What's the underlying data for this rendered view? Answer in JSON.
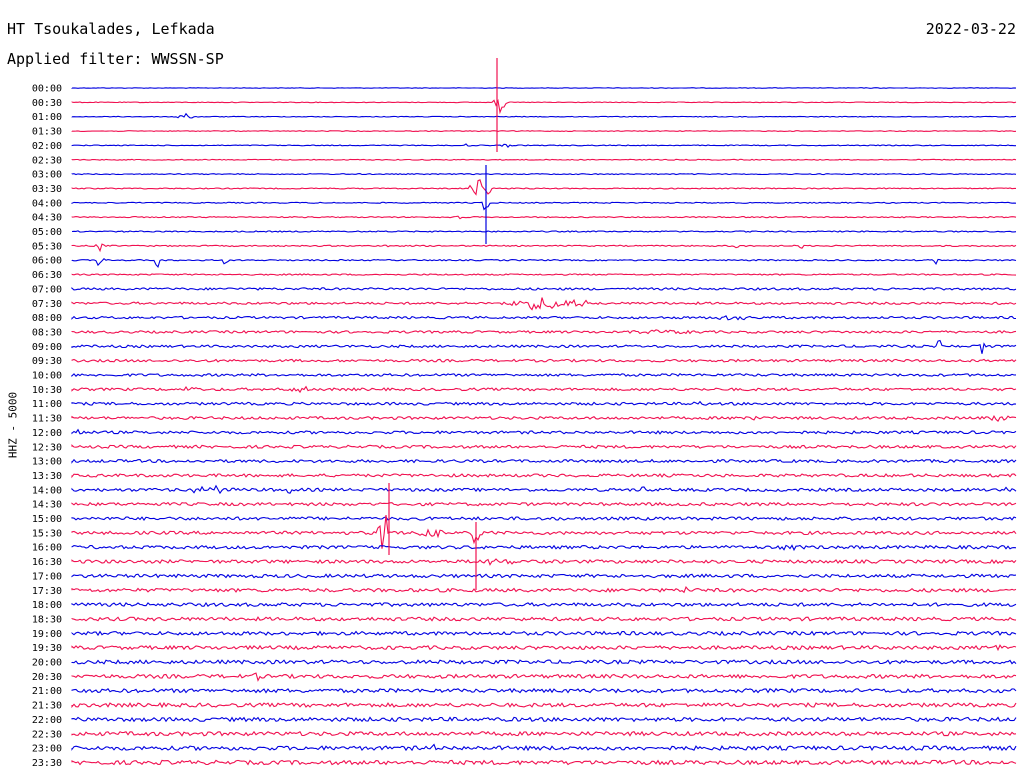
{
  "header": {
    "station": "HT Tsoukalades, Lefkada",
    "date": "2022-03-22",
    "filter": "Applied filter: WWSSN-SP",
    "channel_label": "HHZ - 5000"
  },
  "colors": {
    "trace_a": "#0000e0",
    "trace_b": "#f01050",
    "background": "#ffffff"
  },
  "time_labels": [
    "00:00",
    "00:30",
    "01:00",
    "01:30",
    "02:00",
    "02:30",
    "03:00",
    "03:30",
    "04:00",
    "04:30",
    "05:00",
    "05:30",
    "06:00",
    "06:30",
    "07:00",
    "07:30",
    "08:00",
    "08:30",
    "09:00",
    "09:30",
    "10:00",
    "10:30",
    "11:00",
    "11:30",
    "12:00",
    "12:30",
    "13:00",
    "13:30",
    "14:00",
    "14:30",
    "15:00",
    "15:30",
    "16:00",
    "16:30",
    "17:00",
    "17:30",
    "18:00",
    "18:30",
    "19:00",
    "19:30",
    "20:00",
    "20:30",
    "21:00",
    "21:30",
    "22:00",
    "22:30",
    "23:00",
    "23:30"
  ]
}
